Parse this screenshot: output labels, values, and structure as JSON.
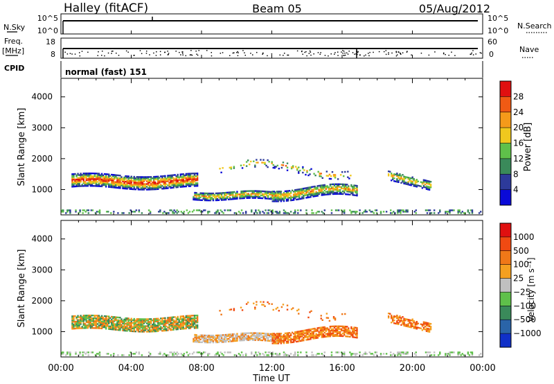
{
  "header": {
    "station": "Halley (fitACF)",
    "beam": "Beam 05",
    "date": "05/Aug/2012"
  },
  "panels": {
    "nsky": {
      "left_label": "N.Sky",
      "right_label": "N.Search",
      "left_ticks": [
        "10^5",
        "10^0"
      ],
      "right_ticks": [
        "10^5",
        "10^0"
      ]
    },
    "freq": {
      "left_label_1": "Freq.",
      "left_label_2": "[MHz]",
      "right_label": "Nave",
      "left_ticks": [
        "18",
        "8"
      ],
      "right_ticks": [
        "60",
        "0"
      ]
    },
    "cpid": {
      "label": "CPID",
      "value": "normal (fast) 151"
    }
  },
  "chart_data": [
    {
      "type": "heatmap",
      "name": "power",
      "ylabel": "Slant Range [km]",
      "xlabel": "Time UT",
      "xlim": [
        0,
        24
      ],
      "ylim": [
        180,
        4600
      ],
      "y_ticks": [
        1000,
        2000,
        3000,
        4000
      ],
      "colorbar": {
        "label": "Power [dB]",
        "tick_labels": [
          "28",
          "24",
          "20",
          "16",
          "12",
          "8",
          "4"
        ],
        "tick_values": [
          28,
          24,
          20,
          16,
          12,
          8,
          4
        ],
        "colors": [
          "#0a0ad8",
          "#2d3a9a",
          "#3a8a5a",
          "#5fc04a",
          "#f0c81e",
          "#f59a1a",
          "#f05a14",
          "#e01010"
        ]
      }
    },
    {
      "type": "heatmap",
      "name": "velocity",
      "ylabel": "Slant Range [km]",
      "xlabel": "Time UT",
      "xlim": [
        0,
        24
      ],
      "ylim": [
        180,
        4600
      ],
      "y_ticks": [
        1000,
        2000,
        3000,
        4000
      ],
      "x_tick_labels": [
        "00:00",
        "04:00",
        "08:00",
        "12:00",
        "16:00",
        "20:00",
        "00:00"
      ],
      "colorbar": {
        "label": "Velocity [m s⁻¹]",
        "tick_labels": [
          "1000",
          "500",
          "100",
          "25",
          "−25",
          "−100",
          "−500",
          "−1000"
        ],
        "colors": [
          "#1030c8",
          "#2a64a8",
          "#3a8a5a",
          "#5fc04a",
          "#c0c0c0",
          "#f5a020",
          "#f07818",
          "#f04a12",
          "#e01010"
        ]
      }
    }
  ]
}
